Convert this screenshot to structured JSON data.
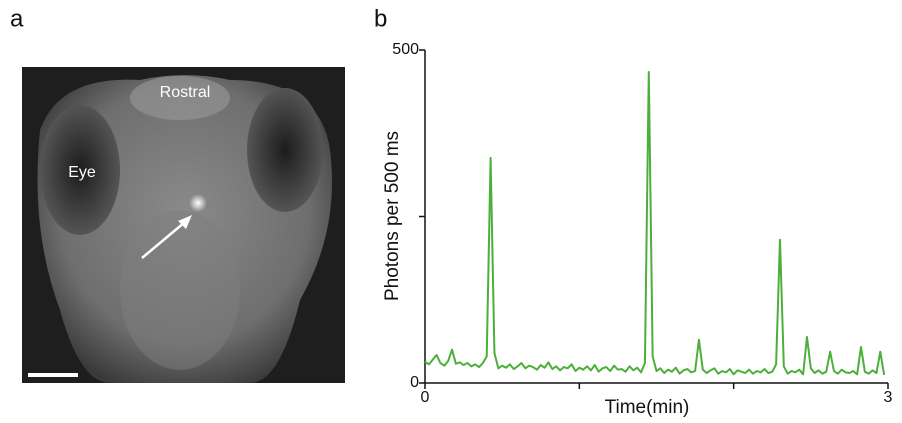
{
  "figure": {
    "panel_labels": [
      "a",
      "b"
    ],
    "image_labels": {
      "rostral": "Rostral",
      "eye": "Eye"
    }
  },
  "chart_data": {
    "type": "line",
    "xlabel": "Time(min)",
    "ylabel": "Photons per 500 ms",
    "color": "#4caf3a",
    "xlim": [
      0,
      3
    ],
    "xticks": [
      0,
      3
    ],
    "xticks_unlabeled": [
      1,
      2
    ],
    "ylim": [
      0,
      500
    ],
    "yticks": [
      0,
      500
    ],
    "yticks_unlabeled": [
      250
    ],
    "x": [
      0,
      0.025,
      0.05,
      0.075,
      0.1,
      0.125,
      0.15,
      0.175,
      0.2,
      0.225,
      0.25,
      0.275,
      0.3,
      0.325,
      0.35,
      0.375,
      0.4,
      0.425,
      0.45,
      0.475,
      0.5,
      0.525,
      0.55,
      0.575,
      0.6,
      0.625,
      0.65,
      0.675,
      0.7,
      0.725,
      0.75,
      0.775,
      0.8,
      0.825,
      0.85,
      0.875,
      0.9,
      0.925,
      0.95,
      0.975,
      1,
      1.025,
      1.05,
      1.075,
      1.1,
      1.125,
      1.15,
      1.175,
      1.2,
      1.225,
      1.25,
      1.275,
      1.3,
      1.325,
      1.35,
      1.375,
      1.4,
      1.425,
      1.45,
      1.475,
      1.5,
      1.525,
      1.55,
      1.575,
      1.6,
      1.625,
      1.65,
      1.675,
      1.7,
      1.725,
      1.75,
      1.775,
      1.8,
      1.825,
      1.85,
      1.875,
      1.9,
      1.925,
      1.95,
      1.975,
      2,
      2.025,
      2.05,
      2.075,
      2.1,
      2.125,
      2.15,
      2.175,
      2.2,
      2.225,
      2.25,
      2.275,
      2.3,
      2.325,
      2.35,
      2.375,
      2.4,
      2.425,
      2.45,
      2.475,
      2.5,
      2.525,
      2.55,
      2.575,
      2.6,
      2.625,
      2.65,
      2.675,
      2.7,
      2.725,
      2.75,
      2.775,
      2.8,
      2.825,
      2.85,
      2.875,
      2.9,
      2.925,
      2.95,
      2.975
    ],
    "values": [
      32,
      28,
      35,
      42,
      30,
      26,
      33,
      50,
      29,
      31,
      27,
      30,
      25,
      28,
      24,
      30,
      40,
      338,
      45,
      22,
      26,
      23,
      28,
      21,
      25,
      30,
      22,
      26,
      24,
      20,
      27,
      23,
      31,
      21,
      25,
      19,
      24,
      22,
      28,
      18,
      23,
      20,
      25,
      19,
      27,
      17,
      22,
      24,
      18,
      26,
      20,
      21,
      17,
      25,
      19,
      23,
      16,
      30,
      467,
      40,
      18,
      22,
      15,
      20,
      17,
      23,
      14,
      19,
      21,
      16,
      18,
      65,
      20,
      15,
      19,
      22,
      14,
      18,
      16,
      21,
      13,
      19,
      17,
      15,
      20,
      14,
      18,
      16,
      21,
      15,
      17,
      28,
      215,
      25,
      14,
      18,
      16,
      20,
      13,
      69,
      22,
      15,
      19,
      14,
      17,
      47,
      18,
      14,
      20,
      16,
      15,
      18,
      13,
      54,
      17,
      14,
      19,
      15,
      47,
      12
    ]
  }
}
